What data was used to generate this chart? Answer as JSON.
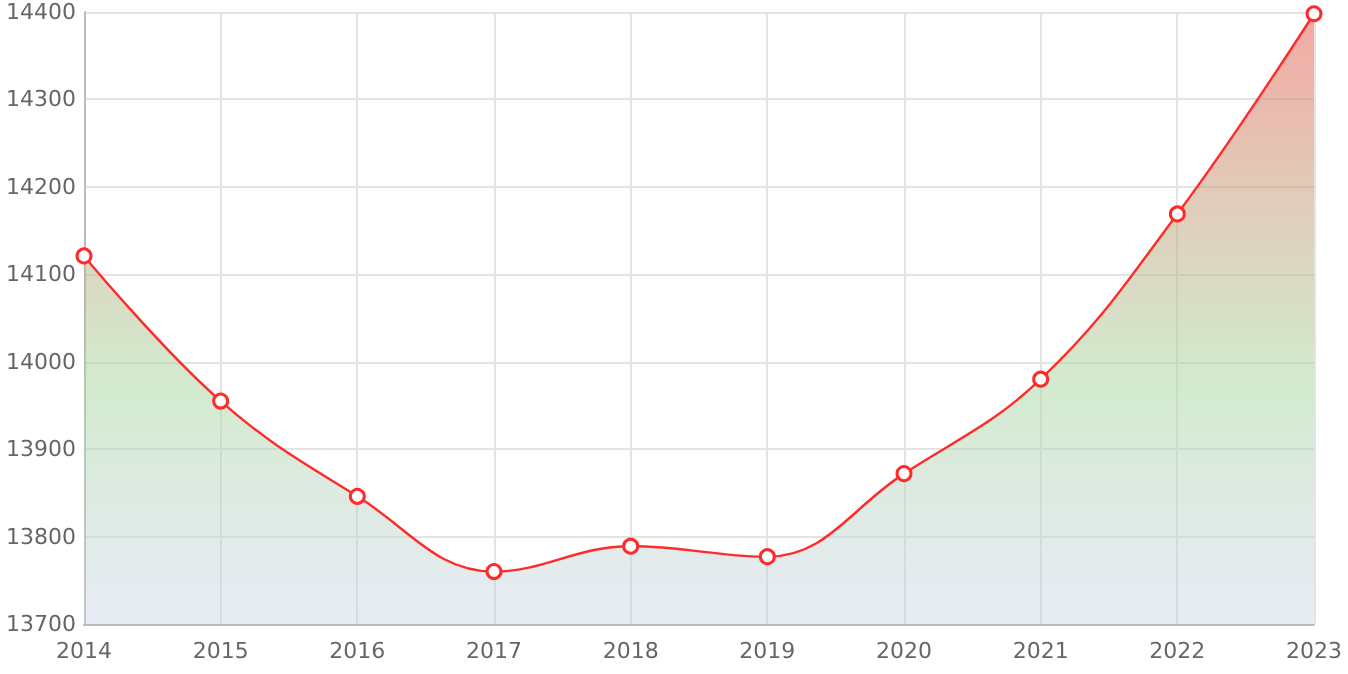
{
  "chart_data": {
    "type": "area",
    "categories": [
      "2014",
      "2015",
      "2016",
      "2017",
      "2018",
      "2019",
      "2020",
      "2021",
      "2022",
      "2023"
    ],
    "series": [
      {
        "color": "#ff2b2b",
        "values": [
          14121,
          13955,
          13846,
          13760,
          13789,
          13777,
          13872,
          13980,
          14169,
          14398
        ]
      }
    ],
    "ylim": [
      13700,
      14400
    ],
    "yticks": [
      13700,
      13800,
      13900,
      14000,
      14100,
      14200,
      14300,
      14400
    ],
    "grid": true,
    "marker": "circle",
    "line_style": "solid"
  }
}
